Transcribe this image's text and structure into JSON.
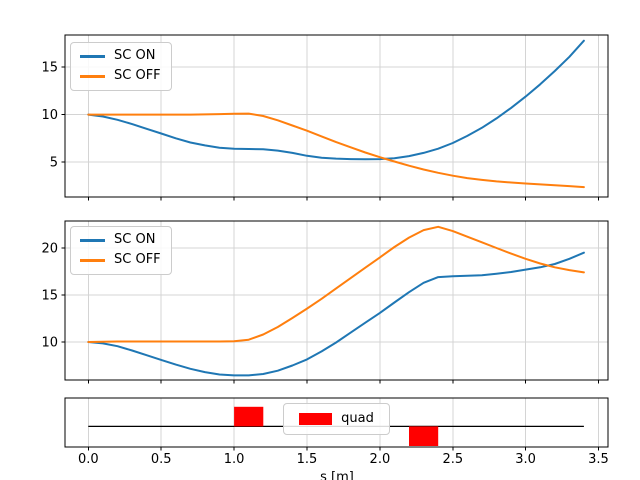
{
  "colors": {
    "sc_on": "#1f77b4",
    "sc_off": "#ff7f0e",
    "quad": "#ff0000",
    "grid": "#d4d4d4",
    "axis": "#000000",
    "background": "#ffffff"
  },
  "chart_data": [
    {
      "id": "top",
      "type": "line",
      "xlim": [
        -0.16,
        3.565
      ],
      "ylim": [
        1.3,
        18.4
      ],
      "xticks": [
        0,
        0.5,
        1,
        1.5,
        2,
        2.5,
        3,
        3.5
      ],
      "yticks": [
        5,
        10,
        15
      ],
      "yticklabels": [
        "5",
        "10",
        "15"
      ],
      "grid": true,
      "legend": {
        "position": "upper left"
      },
      "series": [
        {
          "name": "SC ON",
          "color": "#1f77b4",
          "x": [
            0,
            0.1,
            0.2,
            0.3,
            0.4,
            0.5,
            0.6,
            0.7,
            0.8,
            0.9,
            1.0,
            1.1,
            1.2,
            1.3,
            1.4,
            1.5,
            1.6,
            1.7,
            1.8,
            1.9,
            2.0,
            2.1,
            2.2,
            2.3,
            2.4,
            2.5,
            2.6,
            2.7,
            2.8,
            2.9,
            3.0,
            3.1,
            3.2,
            3.3,
            3.4
          ],
          "y": [
            10,
            9.8,
            9.45,
            9.0,
            8.5,
            8.0,
            7.5,
            7.05,
            6.75,
            6.5,
            6.4,
            6.37,
            6.33,
            6.2,
            5.95,
            5.65,
            5.45,
            5.35,
            5.3,
            5.28,
            5.3,
            5.4,
            5.62,
            5.95,
            6.4,
            7.0,
            7.75,
            8.6,
            9.6,
            10.7,
            11.9,
            13.2,
            14.6,
            16.1,
            17.8
          ]
        },
        {
          "name": "SC OFF",
          "color": "#ff7f0e",
          "x": [
            0,
            0.1,
            0.2,
            0.3,
            0.4,
            0.5,
            0.6,
            0.7,
            0.8,
            0.9,
            1.0,
            1.1,
            1.2,
            1.3,
            1.4,
            1.5,
            1.6,
            1.7,
            1.8,
            1.9,
            2.0,
            2.1,
            2.2,
            2.3,
            2.4,
            2.5,
            2.6,
            2.7,
            2.8,
            2.9,
            3.0,
            3.1,
            3.2,
            3.3,
            3.4
          ],
          "y": [
            10,
            10,
            10,
            10,
            10,
            10,
            10,
            10,
            10.02,
            10.05,
            10.08,
            10.1,
            9.85,
            9.4,
            8.85,
            8.3,
            7.7,
            7.1,
            6.55,
            6.0,
            5.5,
            5.05,
            4.6,
            4.2,
            3.85,
            3.55,
            3.3,
            3.1,
            2.95,
            2.83,
            2.73,
            2.63,
            2.55,
            2.45,
            2.35
          ]
        }
      ]
    },
    {
      "id": "middle",
      "type": "line",
      "xlim": [
        -0.16,
        3.565
      ],
      "ylim": [
        5.96,
        22.87
      ],
      "xticks": [
        0,
        0.5,
        1,
        1.5,
        2,
        2.5,
        3,
        3.5
      ],
      "yticks": [
        10,
        15,
        20
      ],
      "yticklabels": [
        "10",
        "15",
        "20"
      ],
      "grid": true,
      "legend": {
        "position": "upper left"
      },
      "series": [
        {
          "name": "SC ON",
          "color": "#1f77b4",
          "x": [
            0,
            0.1,
            0.2,
            0.3,
            0.4,
            0.5,
            0.6,
            0.7,
            0.8,
            0.9,
            1.0,
            1.1,
            1.2,
            1.3,
            1.4,
            1.5,
            1.6,
            1.7,
            1.8,
            1.9,
            2.0,
            2.1,
            2.2,
            2.3,
            2.4,
            2.5,
            2.6,
            2.7,
            2.8,
            2.9,
            3.0,
            3.1,
            3.2,
            3.3,
            3.4
          ],
          "y": [
            10,
            9.85,
            9.55,
            9.1,
            8.6,
            8.1,
            7.6,
            7.15,
            6.8,
            6.55,
            6.45,
            6.45,
            6.6,
            6.95,
            7.5,
            8.15,
            9.0,
            9.95,
            11.0,
            12.05,
            13.1,
            14.2,
            15.3,
            16.3,
            16.9,
            17.0,
            17.05,
            17.1,
            17.25,
            17.45,
            17.7,
            17.95,
            18.3,
            18.85,
            19.5
          ]
        },
        {
          "name": "SC OFF",
          "color": "#ff7f0e",
          "x": [
            0,
            0.1,
            0.2,
            0.3,
            0.4,
            0.5,
            0.6,
            0.7,
            0.8,
            0.9,
            1.0,
            1.1,
            1.2,
            1.3,
            1.4,
            1.5,
            1.6,
            1.7,
            1.8,
            1.9,
            2.0,
            2.1,
            2.2,
            2.3,
            2.4,
            2.5,
            2.6,
            2.7,
            2.8,
            2.9,
            3.0,
            3.1,
            3.2,
            3.3,
            3.4
          ],
          "y": [
            10,
            10.02,
            10.05,
            10.05,
            10.05,
            10.05,
            10.05,
            10.05,
            10.05,
            10.05,
            10.08,
            10.25,
            10.8,
            11.6,
            12.55,
            13.55,
            14.6,
            15.7,
            16.8,
            17.9,
            19.0,
            20.1,
            21.1,
            21.9,
            22.25,
            21.8,
            21.2,
            20.6,
            20.0,
            19.4,
            18.85,
            18.35,
            17.95,
            17.65,
            17.4
          ]
        }
      ]
    },
    {
      "id": "quad-layout",
      "type": "patch-schedule",
      "xlim": [
        -0.16,
        3.565
      ],
      "ylim": [
        -1.05,
        1.45
      ],
      "xticks": [
        0,
        0.5,
        1,
        1.5,
        2,
        2.5,
        3,
        3.5
      ],
      "xticklabels": [
        "0.0",
        "0.5",
        "1.0",
        "1.5",
        "2.0",
        "2.5",
        "3.0",
        "3.5"
      ],
      "xlabel": "s [m]",
      "grid": true,
      "baseline": {
        "y": 0,
        "x0": 0,
        "x1": 3.4
      },
      "quads": [
        {
          "x0": 1.0,
          "x1": 1.2,
          "k": 1
        },
        {
          "x0": 2.2,
          "x1": 2.4,
          "k": -1
        }
      ],
      "legend": {
        "position": "center",
        "entries": [
          {
            "label": "quad",
            "color": "#ff0000"
          }
        ]
      }
    }
  ]
}
